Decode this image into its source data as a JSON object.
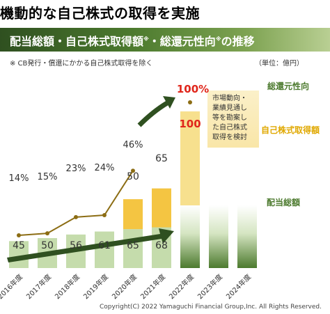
{
  "header": {
    "title": "機動的な自己株式の取得を実施",
    "subtitle": "配当総額・自己株式取得額",
    "subtitle_mark1": "※",
    "subtitle_mid": "・総還元性向",
    "subtitle_mark2": "※",
    "subtitle_end": "の推移",
    "note": "※ CB発行・償還にかかる自己株式取得を除く",
    "unit": "（単位：億円）"
  },
  "colors": {
    "dividend_bar": "#c5dcac",
    "buyback_bar": "#f4c542",
    "payout_line": "#8c6d14",
    "arrow": "#2f5020",
    "accent_red": "#e0261b",
    "label_green": "#4c7a2e",
    "label_gold": "#e0a800"
  },
  "chart_data": {
    "type": "bar",
    "categories": [
      "2016年度",
      "2017年度",
      "2018年度",
      "2019年度",
      "2020年度",
      "2021年度",
      "2022年度",
      "2023年度",
      "2024年度"
    ],
    "series": [
      {
        "name": "配当総額",
        "values": [
          45,
          50,
          56,
          61,
          65,
          68,
          null,
          null,
          null
        ]
      },
      {
        "name": "自己株式取得額",
        "values": [
          0,
          0,
          0,
          0,
          50,
          65,
          100,
          null,
          null
        ]
      },
      {
        "name": "総還元性向",
        "unit": "%",
        "values": [
          14,
          15,
          23,
          24,
          46,
          null,
          100,
          null,
          null
        ]
      }
    ],
    "data_labels": {
      "dividend": [
        "45",
        "50",
        "56",
        "61",
        "65",
        "68"
      ],
      "buyback": [
        "50",
        "65",
        "100"
      ],
      "payout": [
        "14%",
        "15%",
        "23%",
        "24%",
        "46%",
        "100%"
      ]
    },
    "legend": {
      "payout": "総還元性向",
      "buyback": "自己株式取得額",
      "dividend": "配当総額"
    },
    "callout": "市場動向・業績見通し等を勘案した自己株式取得を検討"
  },
  "footer": {
    "copyright": "Copyright(C) 2022 Yamaguchi Financial Group,Inc.  All Rights Reserved."
  }
}
